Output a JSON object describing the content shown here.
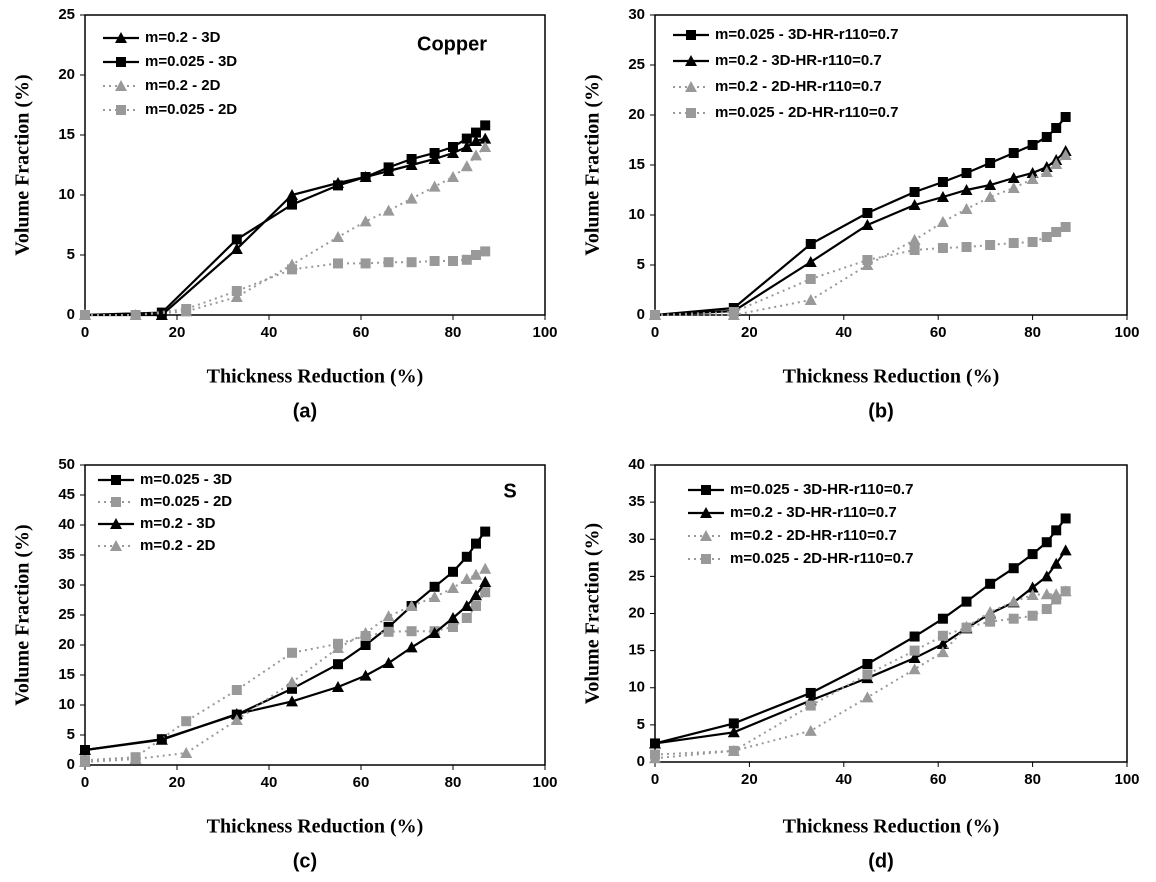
{
  "chart_data": [
    {
      "type": "line",
      "panel_label": "(a)",
      "annotation": "Copper",
      "x_label": "Thickness Reduction (%)",
      "y_label": "Volume Fraction (%)",
      "xlim": [
        0,
        100
      ],
      "xticks": [
        0,
        20,
        40,
        60,
        80,
        100
      ],
      "ylim": [
        0,
        25
      ],
      "yticks": [
        0,
        5,
        10,
        15,
        20,
        25
      ],
      "series": [
        {
          "name": "m=0.2 - 3D",
          "color": "#000000",
          "marker": "triangle",
          "line_style": "solid",
          "x": [
            0,
            16.7,
            33,
            45,
            55,
            61,
            66,
            71,
            76,
            80,
            83,
            85,
            87
          ],
          "values": [
            0,
            0,
            5.5,
            10,
            11,
            11.5,
            12,
            12.5,
            13,
            13.5,
            14,
            14.5,
            14.7
          ]
        },
        {
          "name": "m=0.025 - 3D",
          "color": "#000000",
          "marker": "square",
          "line_style": "solid",
          "x": [
            0,
            16.7,
            33,
            45,
            55,
            61,
            66,
            71,
            76,
            80,
            83,
            85,
            87
          ],
          "values": [
            0,
            0.2,
            6.3,
            9.2,
            10.8,
            11.5,
            12.3,
            13,
            13.5,
            14,
            14.7,
            15.2,
            15.8
          ]
        },
        {
          "name": "m=0.2 - 2D",
          "color": "#999999",
          "marker": "triangle",
          "line_style": "dotted",
          "x": [
            0,
            11,
            22,
            33,
            45,
            55,
            61,
            66,
            71,
            76,
            80,
            83,
            85,
            87
          ],
          "values": [
            0,
            0,
            0.3,
            1.5,
            4.2,
            6.5,
            7.8,
            8.7,
            9.7,
            10.7,
            11.5,
            12.4,
            13.3,
            14
          ]
        },
        {
          "name": "m=0.025 - 2D",
          "color": "#999999",
          "marker": "square",
          "line_style": "dotted",
          "x": [
            0,
            11,
            22,
            33,
            45,
            55,
            61,
            66,
            71,
            76,
            80,
            83,
            85,
            87
          ],
          "values": [
            0,
            0,
            0.5,
            2,
            3.8,
            4.3,
            4.3,
            4.4,
            4.4,
            4.5,
            4.5,
            4.6,
            5,
            5.3
          ]
        }
      ]
    },
    {
      "type": "line",
      "panel_label": "(b)",
      "x_label": "Thickness Reduction (%)",
      "y_label": "Volume Fraction (%)",
      "xlim": [
        0,
        100
      ],
      "xticks": [
        0,
        20,
        40,
        60,
        80,
        100
      ],
      "ylim": [
        0,
        30
      ],
      "yticks": [
        0,
        5,
        10,
        15,
        20,
        25,
        30
      ],
      "series": [
        {
          "name": "m=0.025 - 3D-HR-r110=0.7",
          "color": "#000000",
          "marker": "square",
          "line_style": "solid",
          "x": [
            0,
            16.7,
            33,
            45,
            55,
            61,
            66,
            71,
            76,
            80,
            83,
            85,
            87
          ],
          "values": [
            0,
            0.7,
            7.1,
            10.2,
            12.3,
            13.3,
            14.2,
            15.2,
            16.2,
            17,
            17.8,
            18.7,
            19.8
          ]
        },
        {
          "name": "m=0.2 - 3D-HR-r110=0.7",
          "color": "#000000",
          "marker": "triangle",
          "line_style": "solid",
          "x": [
            0,
            16.7,
            33,
            45,
            55,
            61,
            66,
            71,
            76,
            80,
            83,
            85,
            87
          ],
          "values": [
            0,
            0.4,
            5.3,
            9,
            11,
            11.8,
            12.5,
            13,
            13.7,
            14.2,
            14.8,
            15.5,
            16.4
          ]
        },
        {
          "name": "m=0.2 - 2D-HR-r110=0.7",
          "color": "#999999",
          "marker": "triangle",
          "line_style": "dotted",
          "x": [
            0,
            16.7,
            33,
            45,
            55,
            61,
            66,
            71,
            76,
            80,
            83,
            85,
            87
          ],
          "values": [
            0,
            0,
            1.5,
            5,
            7.5,
            9.3,
            10.6,
            11.8,
            12.7,
            13.6,
            14.3,
            15.1,
            16
          ]
        },
        {
          "name": "m=0.025 - 2D-HR-r110=0.7",
          "color": "#999999",
          "marker": "square",
          "line_style": "dotted",
          "x": [
            0,
            16.7,
            33,
            45,
            55,
            61,
            66,
            71,
            76,
            80,
            83,
            85,
            87
          ],
          "values": [
            0,
            0.3,
            3.6,
            5.5,
            6.5,
            6.7,
            6.8,
            7,
            7.2,
            7.3,
            7.8,
            8.3,
            8.8
          ]
        }
      ]
    },
    {
      "type": "line",
      "panel_label": "(c)",
      "annotation": "S",
      "x_label": "Thickness Reduction (%)",
      "y_label": "Volume Fraction (%)",
      "xlim": [
        0,
        100
      ],
      "xticks": [
        0,
        20,
        40,
        60,
        80,
        100
      ],
      "ylim": [
        0,
        50
      ],
      "yticks": [
        0,
        5,
        10,
        15,
        20,
        25,
        30,
        35,
        40,
        45,
        50
      ],
      "series": [
        {
          "name": "m=0.025 - 3D",
          "color": "#000000",
          "marker": "square",
          "line_style": "solid",
          "x": [
            0,
            16.7,
            33,
            45,
            55,
            61,
            66,
            71,
            76,
            80,
            83,
            85,
            87
          ],
          "values": [
            2.5,
            4.3,
            8.4,
            12.7,
            16.8,
            20,
            23,
            26.5,
            29.7,
            32.2,
            34.7,
            36.9,
            38.9
          ]
        },
        {
          "name": "m=0.025 - 2D",
          "color": "#999999",
          "marker": "square",
          "line_style": "dotted",
          "x": [
            0,
            11,
            22,
            33,
            45,
            55,
            61,
            66,
            71,
            76,
            80,
            83,
            85,
            87
          ],
          "values": [
            0.8,
            1.3,
            7.3,
            12.5,
            18.7,
            20.2,
            21.5,
            22.2,
            22.3,
            22.3,
            23,
            24.5,
            26.5,
            28.8
          ]
        },
        {
          "name": "m=0.2 - 3D",
          "color": "#000000",
          "marker": "triangle",
          "line_style": "solid",
          "x": [
            0,
            16.7,
            33,
            45,
            55,
            61,
            66,
            71,
            76,
            80,
            83,
            85,
            87
          ],
          "values": [
            2.5,
            4.2,
            8.5,
            10.6,
            13,
            14.9,
            17,
            19.6,
            22,
            24.5,
            26.5,
            28.3,
            30.5
          ]
        },
        {
          "name": "m=0.2 - 2D",
          "color": "#999999",
          "marker": "triangle",
          "line_style": "dotted",
          "x": [
            0,
            11,
            22,
            33,
            45,
            55,
            61,
            66,
            71,
            76,
            80,
            83,
            85,
            87
          ],
          "values": [
            0.5,
            1,
            2,
            7.5,
            13.8,
            19.5,
            22,
            24.8,
            26.5,
            28,
            29.5,
            31,
            31.7,
            32.7
          ]
        }
      ]
    },
    {
      "type": "line",
      "panel_label": "(d)",
      "x_label": "Thickness Reduction (%)",
      "y_label": "Volume Fraction (%)",
      "xlim": [
        0,
        100
      ],
      "xticks": [
        0,
        20,
        40,
        60,
        80,
        100
      ],
      "ylim": [
        0,
        40
      ],
      "yticks": [
        0,
        5,
        10,
        15,
        20,
        25,
        30,
        35,
        40
      ],
      "series": [
        {
          "name": "m=0.025 - 3D-HR-r110=0.7",
          "color": "#000000",
          "marker": "square",
          "line_style": "solid",
          "x": [
            0,
            16.7,
            33,
            45,
            55,
            61,
            66,
            71,
            76,
            80,
            83,
            85,
            87
          ],
          "values": [
            2.5,
            5.2,
            9.3,
            13.2,
            16.9,
            19.3,
            21.6,
            24,
            26.1,
            28,
            29.6,
            31.2,
            32.8
          ]
        },
        {
          "name": "m=0.2 - 3D-HR-r110=0.7",
          "color": "#000000",
          "marker": "triangle",
          "line_style": "solid",
          "x": [
            0,
            16.7,
            33,
            45,
            55,
            61,
            66,
            71,
            76,
            80,
            83,
            85,
            87
          ],
          "values": [
            2.5,
            4,
            8.3,
            11.3,
            14,
            15.9,
            18,
            20,
            21.5,
            23.5,
            25,
            26.7,
            28.5
          ]
        },
        {
          "name": "m=0.2 - 2D-HR-r110=0.7",
          "color": "#999999",
          "marker": "triangle",
          "line_style": "dotted",
          "x": [
            0,
            16.7,
            33,
            45,
            55,
            61,
            66,
            71,
            76,
            80,
            83,
            85,
            87
          ],
          "values": [
            0.5,
            1.5,
            4.2,
            8.7,
            12.5,
            14.8,
            18.2,
            20.2,
            21.6,
            22.5,
            22.6,
            22.6,
            23
          ]
        },
        {
          "name": "m=0.025 - 2D-HR-r110=0.7",
          "color": "#999999",
          "marker": "square",
          "line_style": "dotted",
          "x": [
            0,
            16.7,
            33,
            45,
            55,
            61,
            66,
            71,
            76,
            80,
            83,
            85,
            87
          ],
          "values": [
            1,
            1.5,
            7.6,
            11.8,
            15,
            17,
            18.1,
            18.9,
            19.3,
            19.7,
            20.6,
            21.9,
            23
          ]
        }
      ]
    }
  ]
}
